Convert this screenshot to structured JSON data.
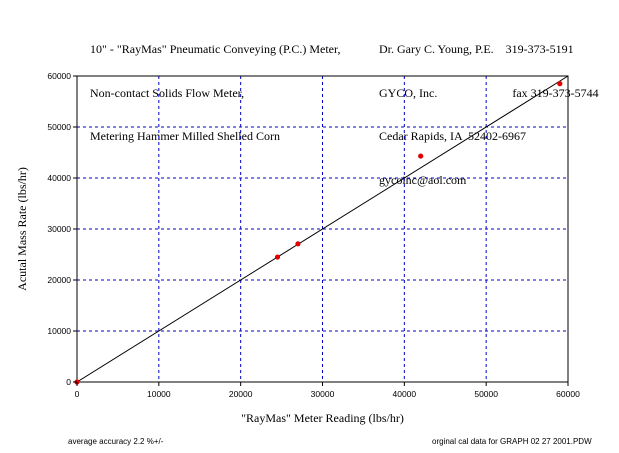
{
  "header": {
    "title_lines": [
      "10\" - \"RayMas\" Pneumatic Conveying (P.C.) Meter,",
      "Non-contact Solids Flow Meter,",
      "Metering Hammer Milled Shelled Corn"
    ],
    "contact_lines": [
      "Dr. Gary C. Young, P.E.    319-373-5191",
      "GYCO, Inc.                         fax 319-373-5744",
      "Cedar Rapids, IA  52402-6967",
      "gycoinc@aol.com"
    ]
  },
  "footer": {
    "left_note": "average accuracy 2.2 %+/-",
    "right_note": "orginal cal data for GRAPH 02 27 2001.PDW"
  },
  "chart_data": {
    "type": "scatter",
    "xlabel": "\"RayMas\" Meter Reading (lbs/hr)",
    "ylabel": "Acutal Mass Rate (lbs/hr)",
    "xlim": [
      0,
      60000
    ],
    "ylim": [
      0,
      60000
    ],
    "xticks": [
      0,
      10000,
      20000,
      30000,
      40000,
      50000,
      60000
    ],
    "yticks": [
      0,
      10000,
      20000,
      30000,
      40000,
      50000,
      60000
    ],
    "grid": true,
    "grid_style": "dashed",
    "grid_color": "#0000cc",
    "point_color": "#e00000",
    "points": [
      {
        "x": 0,
        "y": 0
      },
      {
        "x": 24500,
        "y": 24500
      },
      {
        "x": 27000,
        "y": 27100
      },
      {
        "x": 42000,
        "y": 44300
      },
      {
        "x": 59000,
        "y": 58500
      }
    ],
    "reference_line": {
      "from": [
        0,
        0
      ],
      "to": [
        60000,
        60000
      ],
      "color": "#000000"
    }
  }
}
